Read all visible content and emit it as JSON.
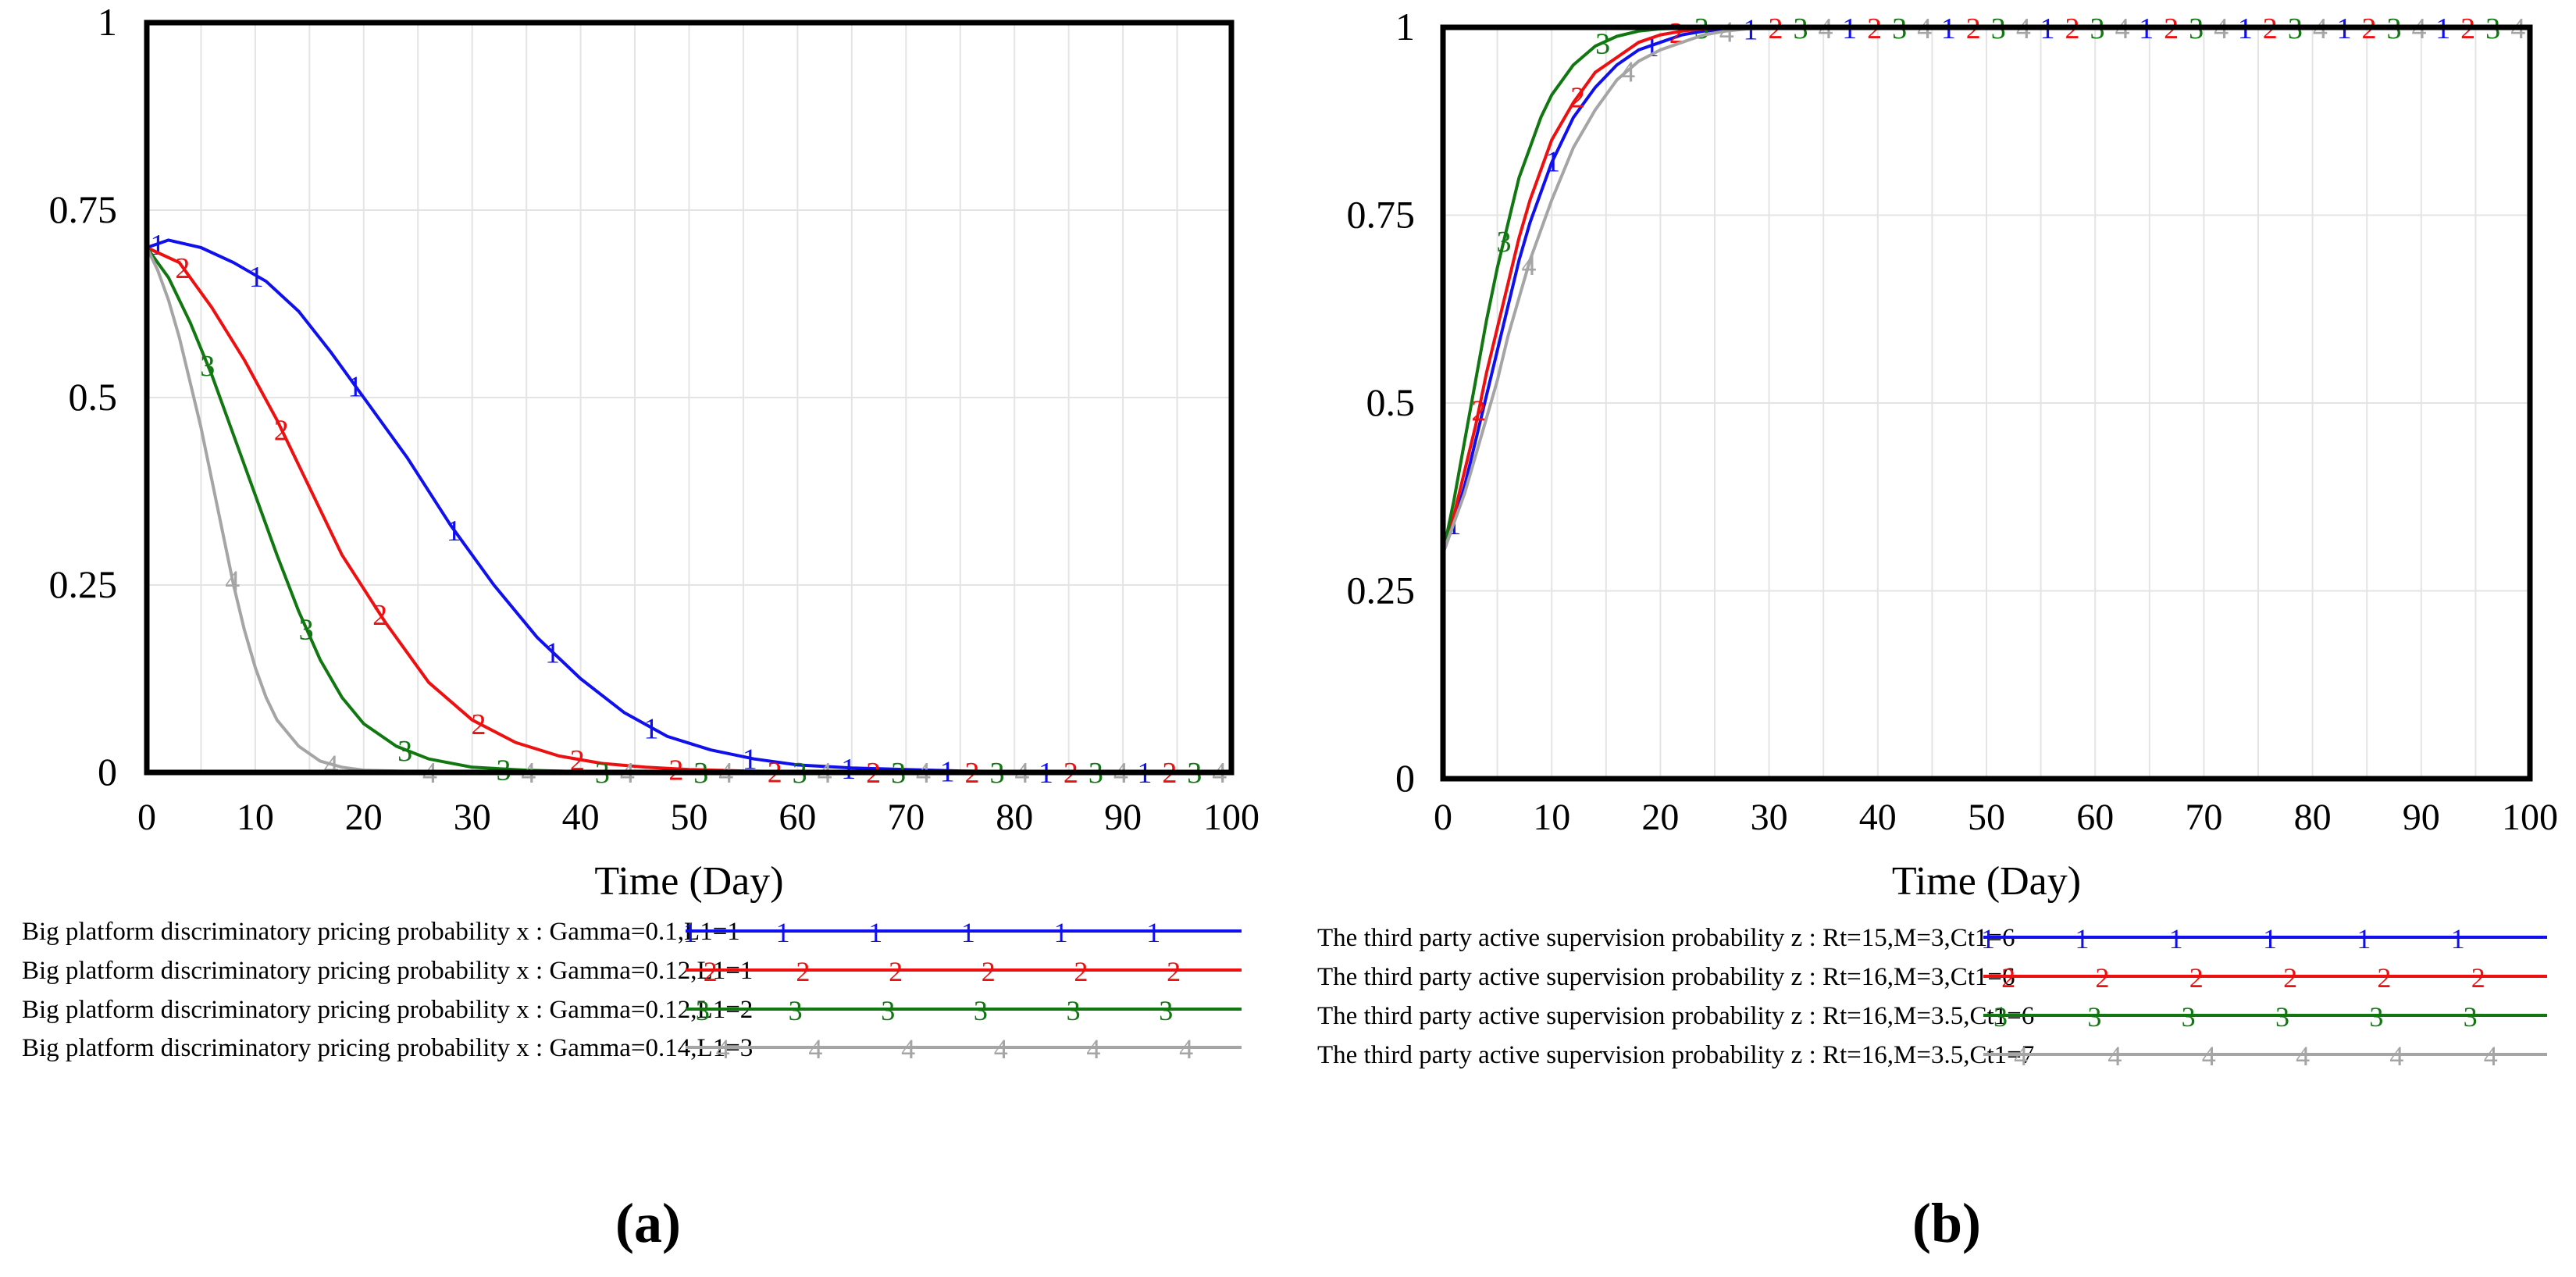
{
  "chart_data": [
    {
      "type": "line",
      "panel_label": "(a)",
      "xlabel": "Time (Day)",
      "ylabel": "",
      "xlim": [
        0,
        100
      ],
      "ylim": [
        0,
        1
      ],
      "x_ticks": [
        0,
        10,
        20,
        30,
        40,
        50,
        60,
        70,
        80,
        90,
        100
      ],
      "y_ticks": [
        {
          "value": 0,
          "label": "0"
        },
        {
          "value": 0.25,
          "label": "0.25"
        },
        {
          "value": 0.5,
          "label": "0.5"
        },
        {
          "value": 0.75,
          "label": "0.75"
        },
        {
          "value": 1,
          "label": "1"
        }
      ],
      "grid": true,
      "series": [
        {
          "marker": "1",
          "name": "Big platform discriminatory pricing probability x : Gamma=0.1,L1=1",
          "color": "#1010ee",
          "x": [
            0,
            2,
            5,
            8,
            11,
            14,
            17,
            20,
            24,
            28,
            32,
            36,
            40,
            44,
            48,
            52,
            56,
            60,
            65,
            70,
            75,
            80,
            90,
            100
          ],
          "y": [
            0.7,
            0.71,
            0.7,
            0.68,
            0.655,
            0.615,
            0.56,
            0.5,
            0.42,
            0.33,
            0.25,
            0.18,
            0.125,
            0.08,
            0.048,
            0.03,
            0.018,
            0.01,
            0.006,
            0.004,
            0.002,
            0.001,
            0.001,
            0.001
          ]
        },
        {
          "marker": "2",
          "name": "Big platform discriminatory pricing probability x : Gamma=0.12,L1=1",
          "color": "#ee1010",
          "x": [
            0,
            3,
            6,
            9,
            12,
            15,
            18,
            22,
            26,
            30,
            34,
            38,
            42,
            46,
            50,
            55,
            60,
            70,
            80,
            90,
            100
          ],
          "y": [
            0.7,
            0.68,
            0.62,
            0.55,
            0.47,
            0.38,
            0.29,
            0.2,
            0.12,
            0.07,
            0.04,
            0.022,
            0.012,
            0.007,
            0.004,
            0.002,
            0.001,
            0.001,
            0.001,
            0.001,
            0.001
          ]
        },
        {
          "marker": "3",
          "name": "Big platform discriminatory pricing probability x : Gamma=0.12,L1=2",
          "color": "#117711",
          "x": [
            0,
            2,
            4,
            6,
            8,
            10,
            12,
            14,
            16,
            18,
            20,
            23,
            26,
            30,
            35,
            40,
            50,
            60,
            70,
            80,
            90,
            100
          ],
          "y": [
            0.7,
            0.66,
            0.6,
            0.53,
            0.45,
            0.37,
            0.29,
            0.215,
            0.15,
            0.1,
            0.065,
            0.035,
            0.018,
            0.007,
            0.003,
            0.001,
            0.001,
            0.001,
            0.001,
            0.001,
            0.001,
            0.001
          ]
        },
        {
          "marker": "4",
          "name": "Big platform discriminatory pricing probability x : Gamma=0.14,L1=3",
          "color": "#a5a5a5",
          "x": [
            0,
            1,
            2,
            3,
            4,
            5,
            6,
            7,
            8,
            9,
            10,
            11,
            12,
            14,
            16,
            18,
            20,
            25,
            30,
            40,
            50,
            60,
            70,
            80,
            90,
            100
          ],
          "y": [
            0.7,
            0.67,
            0.63,
            0.58,
            0.52,
            0.46,
            0.39,
            0.32,
            0.25,
            0.19,
            0.14,
            0.1,
            0.07,
            0.035,
            0.015,
            0.007,
            0.003,
            0.001,
            0.001,
            0.001,
            0.001,
            0.001,
            0.001,
            0.001,
            0.001,
            0.001
          ]
        }
      ]
    },
    {
      "type": "line",
      "panel_label": "(b)",
      "xlabel": "Time (Day)",
      "ylabel": "",
      "xlim": [
        0,
        100
      ],
      "ylim": [
        0,
        1
      ],
      "x_ticks": [
        0,
        10,
        20,
        30,
        40,
        50,
        60,
        70,
        80,
        90,
        100
      ],
      "y_ticks": [
        {
          "value": 0,
          "label": "0"
        },
        {
          "value": 0.25,
          "label": "0.25"
        },
        {
          "value": 0.5,
          "label": "0.5"
        },
        {
          "value": 0.75,
          "label": "0.75"
        },
        {
          "value": 1,
          "label": "1"
        }
      ],
      "grid": true,
      "series": [
        {
          "marker": "1",
          "name": "The third party active supervision probability z : Rt=15,M=3,Ct1=6",
          "color": "#1010ee",
          "x": [
            0,
            1,
            2,
            3,
            4,
            5,
            6,
            7,
            8,
            9,
            10,
            12,
            14,
            16,
            18,
            20,
            22,
            24,
            27,
            30,
            35,
            40,
            50,
            60,
            70,
            80,
            90,
            100
          ],
          "y": [
            0.3,
            0.34,
            0.39,
            0.45,
            0.51,
            0.57,
            0.63,
            0.69,
            0.74,
            0.78,
            0.82,
            0.88,
            0.92,
            0.95,
            0.97,
            0.98,
            0.99,
            0.995,
            0.998,
            0.999,
            1.0,
            1.0,
            1.0,
            1.0,
            1.0,
            1.0,
            1.0,
            1.0
          ]
        },
        {
          "marker": "2",
          "name": "The third party active supervision probability z : Rt=16,M=3,Ct1=6",
          "color": "#ee1010",
          "x": [
            0,
            1,
            2,
            3,
            4,
            5,
            6,
            7,
            8,
            9,
            10,
            12,
            14,
            16,
            18,
            20,
            22,
            24,
            27,
            30,
            35,
            40,
            50,
            60,
            70,
            80,
            90,
            100
          ],
          "y": [
            0.3,
            0.35,
            0.41,
            0.47,
            0.54,
            0.6,
            0.66,
            0.72,
            0.77,
            0.81,
            0.85,
            0.9,
            0.94,
            0.96,
            0.98,
            0.99,
            0.995,
            0.998,
            0.999,
            1.0,
            1.0,
            1.0,
            1.0,
            1.0,
            1.0,
            1.0,
            1.0,
            1.0
          ]
        },
        {
          "marker": "3",
          "name": "The third party active supervision probability z : Rt=16,M=3.5,Ct1=6",
          "color": "#117711",
          "x": [
            0,
            1,
            2,
            3,
            4,
            5,
            6,
            7,
            8,
            9,
            10,
            12,
            14,
            16,
            18,
            20,
            22,
            24,
            27,
            30,
            35,
            40,
            50,
            60,
            70,
            80,
            90,
            100
          ],
          "y": [
            0.3,
            0.37,
            0.45,
            0.53,
            0.61,
            0.68,
            0.74,
            0.8,
            0.84,
            0.88,
            0.91,
            0.95,
            0.975,
            0.988,
            0.995,
            0.998,
            0.999,
            1.0,
            1.0,
            1.0,
            1.0,
            1.0,
            1.0,
            1.0,
            1.0,
            1.0,
            1.0,
            1.0
          ]
        },
        {
          "marker": "4",
          "name": "The third party active supervision probability z : Rt=16,M=3.5,Ct1=7",
          "color": "#a5a5a5",
          "x": [
            0,
            1,
            2,
            3,
            4,
            5,
            6,
            7,
            8,
            9,
            10,
            12,
            14,
            16,
            18,
            20,
            22,
            24,
            26,
            28,
            30,
            35,
            40,
            50,
            60,
            70,
            80,
            90,
            100
          ],
          "y": [
            0.3,
            0.34,
            0.38,
            0.43,
            0.48,
            0.53,
            0.59,
            0.64,
            0.69,
            0.73,
            0.77,
            0.84,
            0.89,
            0.93,
            0.955,
            0.97,
            0.98,
            0.99,
            0.995,
            0.998,
            0.999,
            1.0,
            1.0,
            1.0,
            1.0,
            1.0,
            1.0,
            1.0,
            1.0
          ]
        }
      ]
    }
  ]
}
